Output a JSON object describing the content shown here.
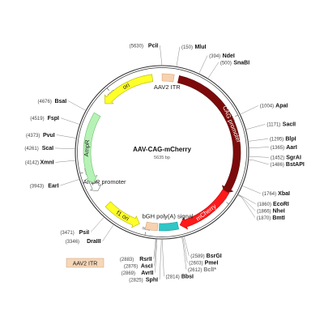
{
  "map": {
    "title": "AAV-CAG-mCherry",
    "size_label": "5635 bp",
    "total_bp": 5635,
    "tag": "AAV2 ITR"
  },
  "ticks": [
    {
      "bp": 1000,
      "label": "1000"
    },
    {
      "bp": 2000,
      "label": "2000"
    },
    {
      "bp": 3000,
      "label": "3000"
    },
    {
      "bp": 4000,
      "label": "4000"
    },
    {
      "bp": 5000,
      "label": "5000"
    }
  ],
  "features": [
    {
      "name": "AAV2 ITR",
      "label": "AAV2 ITR",
      "start": 1,
      "end": 141,
      "dir": "none",
      "color": "#f6d2b0",
      "stroke": "#d8a57a"
    },
    {
      "name": "CAG promoter",
      "label": "CAG promoter",
      "start": 200,
      "end": 1930,
      "dir": "cw",
      "color": "#7d0a0a",
      "stroke": "#5a0606"
    },
    {
      "name": "mCherry",
      "label": "mCherry",
      "start": 1900,
      "end": 2600,
      "dir": "cw",
      "color": "#ff1a1a",
      "stroke": "#c40000"
    },
    {
      "name": "bGH poly(A) signal",
      "label": "bGH poly(A) signal",
      "start": 2625,
      "end": 2850,
      "dir": "none",
      "color": "#2fc6c6",
      "stroke": "#1a9a9a"
    },
    {
      "name": "AAV2 ITR",
      "label": "",
      "start": 2870,
      "end": 3010,
      "dir": "none",
      "color": "#f6d2b0",
      "stroke": "#d8a57a"
    },
    {
      "name": "f1 ori",
      "label": "f1 ori",
      "start": 3090,
      "end": 3540,
      "dir": "ccw",
      "color": "#ffff2a",
      "stroke": "#b8b800"
    },
    {
      "name": "AmpR promoter",
      "label": "AmpR promoter",
      "start": 3740,
      "end": 3850,
      "dir": "ccw",
      "color": "#ffffff",
      "stroke": "#777777"
    },
    {
      "name": "AmpR",
      "label": "AmpR",
      "start": 3850,
      "end": 4700,
      "dir": "ccw",
      "color": "#b6f2b6",
      "stroke": "#6cbf6c"
    },
    {
      "name": "ori",
      "label": "ori",
      "start": 4860,
      "end": 5520,
      "dir": "ccw",
      "color": "#ffff2a",
      "stroke": "#b8b800"
    }
  ],
  "sites": [
    {
      "name": "PciI",
      "pos": "(5630)",
      "bp": 5630,
      "side": "left"
    },
    {
      "name": "MluI",
      "pos": "(150)",
      "bp": 150,
      "side": "right"
    },
    {
      "name": "NdeI",
      "pos": "(394)",
      "bp": 394,
      "side": "right"
    },
    {
      "name": "SnaBI",
      "pos": "(500)",
      "bp": 500,
      "side": "right"
    },
    {
      "name": "ApaI",
      "pos": "(1004)",
      "bp": 1004,
      "side": "right"
    },
    {
      "name": "SacII",
      "pos": "(1171)",
      "bp": 1171,
      "side": "right"
    },
    {
      "name": "BlpI",
      "pos": "(1295)",
      "bp": 1295,
      "side": "right"
    },
    {
      "name": "AarI",
      "pos": "(1365)",
      "bp": 1365,
      "side": "right"
    },
    {
      "name": "SgrAI",
      "pos": "(1452)",
      "bp": 1452,
      "side": "right"
    },
    {
      "name": "BstAPI",
      "pos": "(1486)",
      "bp": 1486,
      "side": "right"
    },
    {
      "name": "XbaI",
      "pos": "(1764)",
      "bp": 1764,
      "side": "right"
    },
    {
      "name": "EcoRI",
      "pos": "(1860)",
      "bp": 1860,
      "side": "right"
    },
    {
      "name": "NheI",
      "pos": "(1866)",
      "bp": 1866,
      "side": "right"
    },
    {
      "name": "BmtI",
      "pos": "(1870)",
      "bp": 1870,
      "side": "right"
    },
    {
      "name": "BsrGI",
      "pos": "(2589)",
      "bp": 2589,
      "side": "right"
    },
    {
      "name": "PmeI",
      "pos": "(2603)",
      "bp": 2603,
      "side": "right"
    },
    {
      "name": "BclI*",
      "pos": "(2612)",
      "bp": 2612,
      "side": "right",
      "dim": true
    },
    {
      "name": "BbsI",
      "pos": "(2814)",
      "bp": 2814,
      "side": "right"
    },
    {
      "name": "SphI",
      "pos": "(2825)",
      "bp": 2825,
      "side": "left"
    },
    {
      "name": "AvrII",
      "pos": "(2869)",
      "bp": 2869,
      "side": "left"
    },
    {
      "name": "AscI",
      "pos": "(2876)",
      "bp": 2876,
      "side": "left"
    },
    {
      "name": "RsrII",
      "pos": "(2883)",
      "bp": 2883,
      "side": "left"
    },
    {
      "name": "DraIII",
      "pos": "(3346)",
      "bp": 3346,
      "side": "left"
    },
    {
      "name": "PsiI",
      "pos": "(3471)",
      "bp": 3471,
      "side": "left"
    },
    {
      "name": "EarI",
      "pos": "(3943)",
      "bp": 3943,
      "side": "left"
    },
    {
      "name": "XmnI",
      "pos": "(4142)",
      "bp": 4142,
      "side": "left"
    },
    {
      "name": "ScaI",
      "pos": "(4261)",
      "bp": 4261,
      "side": "left"
    },
    {
      "name": "PvuI",
      "pos": "(4373)",
      "bp": 4373,
      "side": "left"
    },
    {
      "name": "FspI",
      "pos": "(4519)",
      "bp": 4519,
      "side": "left"
    },
    {
      "name": "BsaI",
      "pos": "(4676)",
      "bp": 4676,
      "side": "left"
    }
  ]
}
